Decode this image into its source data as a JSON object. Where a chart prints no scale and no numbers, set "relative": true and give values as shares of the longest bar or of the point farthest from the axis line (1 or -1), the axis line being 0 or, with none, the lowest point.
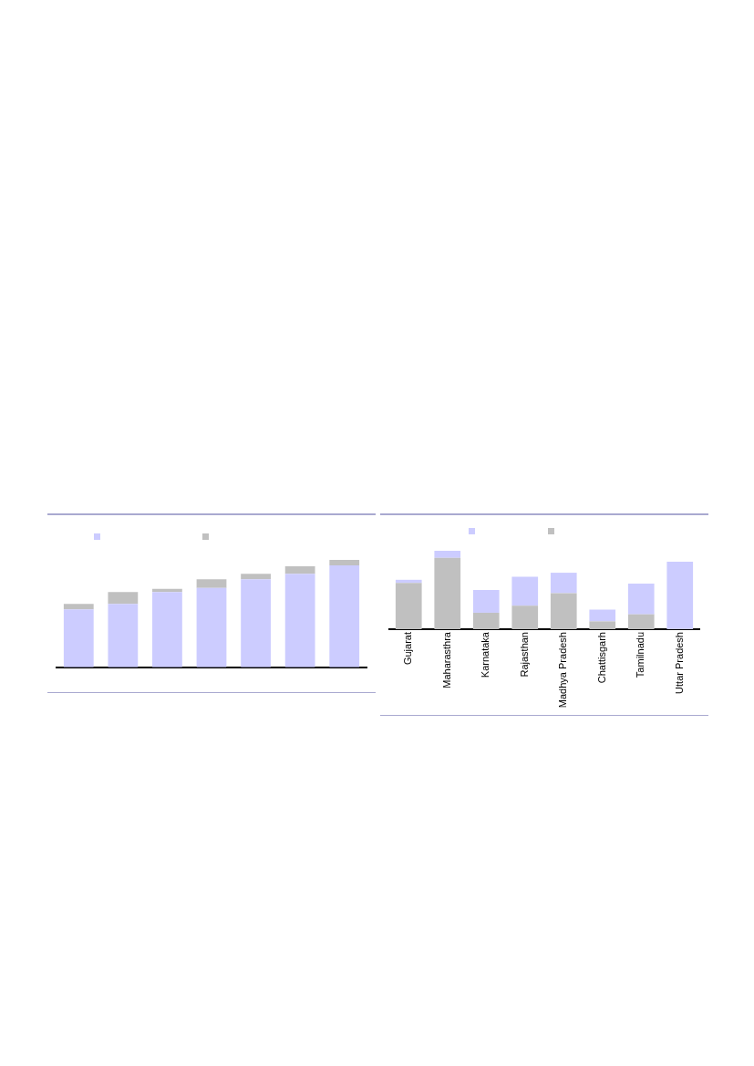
{
  "chart_data": [
    {
      "type": "bar",
      "relative": true,
      "stacked": true,
      "categories": [
        null,
        null,
        null,
        null,
        null,
        null,
        null
      ],
      "series": [
        {
          "color": "#ccccff",
          "values": [
            0.54,
            0.59,
            0.7,
            0.74,
            0.82,
            0.87,
            0.95
          ]
        },
        {
          "color": "#c0c0c0",
          "values": [
            0.05,
            0.11,
            0.03,
            0.08,
            0.05,
            0.07,
            0.05
          ]
        }
      ]
    },
    {
      "type": "bar",
      "relative": true,
      "stacked": true,
      "categories": [
        "Gujarat",
        "Maharasthra",
        "Karnataka",
        "Rajasthan",
        "Madhya Pradesh",
        "Chattisgarh",
        "Tamilnadu",
        "Uttar Pradesh"
      ],
      "series": [
        {
          "color": "#c0c0c0",
          "values": [
            0.59,
            0.91,
            0.21,
            0.3,
            0.46,
            0.1,
            0.19,
            0
          ]
        },
        {
          "color": "#ccccff",
          "values": [
            0.04,
            0.09,
            0.29,
            0.37,
            0.26,
            0.15,
            0.39,
            0.86
          ]
        }
      ]
    }
  ]
}
